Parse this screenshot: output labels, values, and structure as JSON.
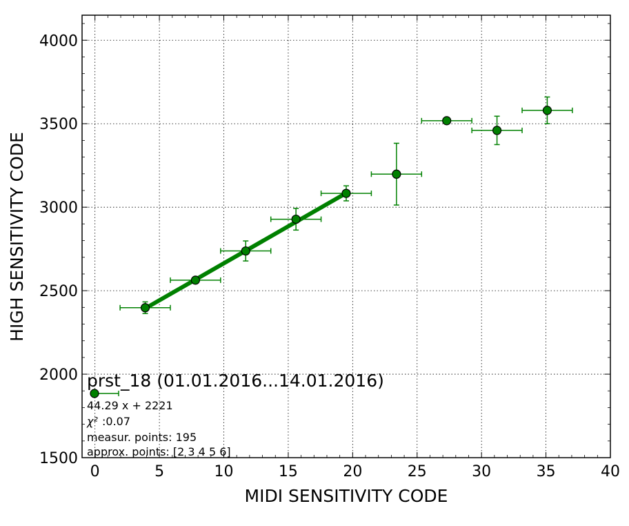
{
  "chart_data": {
    "type": "scatter",
    "xlabel": "MIDI SENSITIVITY CODE",
    "ylabel": "HIGH SENSITIVITY CODE",
    "xlim": [
      -1,
      40
    ],
    "ylim": [
      1500,
      4150
    ],
    "xticks": [
      0,
      5,
      10,
      15,
      20,
      25,
      30,
      35,
      40
    ],
    "yticks": [
      1500,
      2000,
      2500,
      3000,
      3500,
      4000
    ],
    "grid": true,
    "grid_style": "dotted",
    "legend_position": "bottom-left",
    "color": "#008000",
    "series": [
      {
        "name": "prst_18 (01.01.2016...14.01.2016)",
        "points": [
          {
            "x": 3.9,
            "y": 2398,
            "xerr": 1.95,
            "yerr": 35
          },
          {
            "x": 7.8,
            "y": 2563,
            "xerr": 1.95,
            "yerr": 12
          },
          {
            "x": 11.7,
            "y": 2738,
            "xerr": 1.95,
            "yerr": 60
          },
          {
            "x": 15.6,
            "y": 2928,
            "xerr": 1.95,
            "yerr": 65
          },
          {
            "x": 19.5,
            "y": 3083,
            "xerr": 1.95,
            "yerr": 45
          },
          {
            "x": 23.4,
            "y": 3198,
            "xerr": 1.95,
            "yerr": 185
          },
          {
            "x": 27.3,
            "y": 3518,
            "xerr": 1.95,
            "yerr": 5
          },
          {
            "x": 31.2,
            "y": 3460,
            "xerr": 1.95,
            "yerr": 85
          },
          {
            "x": 35.1,
            "y": 3580,
            "xerr": 1.95,
            "yerr": 80
          }
        ]
      }
    ],
    "fit_line": {
      "slope": 44.29,
      "intercept": 2221,
      "x_range": [
        3.9,
        19.5
      ]
    },
    "legend": {
      "title": "prst_18 (01.01.2016...14.01.2016)",
      "lines": [
        "44.29 x + 2221",
        ":0.07",
        "measur. points: 195",
        "approx. points: [2 3 4 5 6]"
      ],
      "chi_symbol": "χ²"
    }
  }
}
